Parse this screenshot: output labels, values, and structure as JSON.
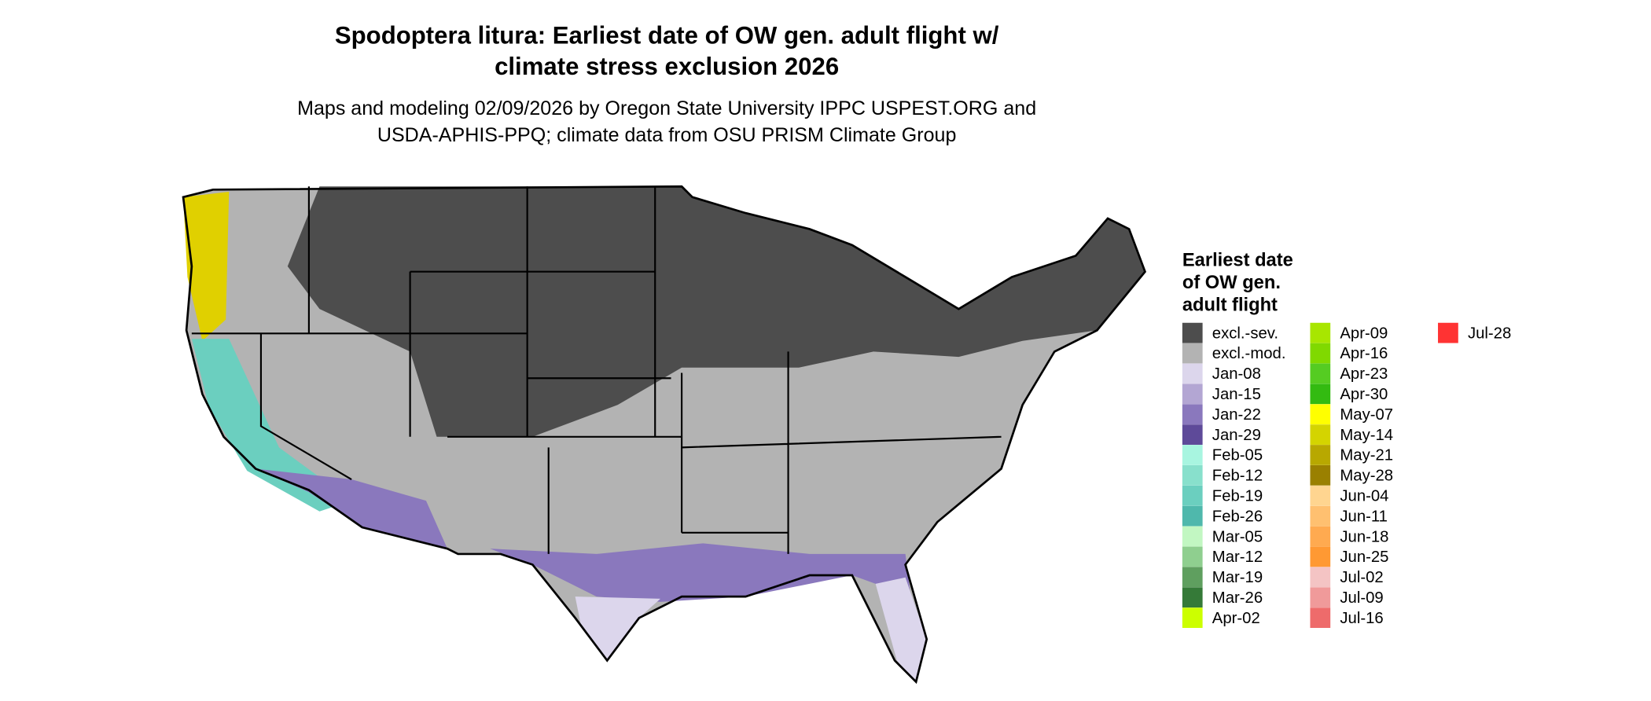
{
  "title": [
    "Spodoptera litura: Earliest date of OW gen. adult flight w/",
    "climate stress exclusion 2026"
  ],
  "subtitle": [
    "Maps and modeling 02/09/2026 by Oregon State University IPPC USPEST.ORG and",
    "USDA-APHIS-PPQ; climate data from OSU PRISM Climate Group"
  ],
  "legend": {
    "title": [
      "Earliest date",
      "of OW gen.",
      "adult flight"
    ],
    "items": [
      {
        "label": "excl.-sev.",
        "color": "#4d4d4d"
      },
      {
        "label": "excl.-mod.",
        "color": "#b3b3b3"
      },
      {
        "label": "Jan-08",
        "color": "#dcd6ec"
      },
      {
        "label": "Jan-15",
        "color": "#b3a6d3"
      },
      {
        "label": "Jan-22",
        "color": "#8a78bd"
      },
      {
        "label": "Jan-29",
        "color": "#5e4a99"
      },
      {
        "label": "Feb-05",
        "color": "#a8f5e0"
      },
      {
        "label": "Feb-12",
        "color": "#88e0cc"
      },
      {
        "label": "Feb-19",
        "color": "#6bcfbf"
      },
      {
        "label": "Feb-26",
        "color": "#4fb8ac"
      },
      {
        "label": "Mar-05",
        "color": "#c2f7c2"
      },
      {
        "label": "Mar-12",
        "color": "#8fcf8f"
      },
      {
        "label": "Mar-19",
        "color": "#5f9f5f"
      },
      {
        "label": "Mar-26",
        "color": "#357a38"
      },
      {
        "label": "Apr-02",
        "color": "#ccff00"
      },
      {
        "label": "Apr-09",
        "color": "#a8e600"
      },
      {
        "label": "Apr-16",
        "color": "#80d900"
      },
      {
        "label": "Apr-23",
        "color": "#55cc22"
      },
      {
        "label": "Apr-30",
        "color": "#33bb11"
      },
      {
        "label": "May-07",
        "color": "#ffff00"
      },
      {
        "label": "May-14",
        "color": "#d4d400"
      },
      {
        "label": "May-21",
        "color": "#b8a800"
      },
      {
        "label": "May-28",
        "color": "#9a8000"
      },
      {
        "label": "Jun-04",
        "color": "#ffd590"
      },
      {
        "label": "Jun-11",
        "color": "#ffc070"
      },
      {
        "label": "Jun-18",
        "color": "#ffaa50"
      },
      {
        "label": "Jun-25",
        "color": "#ff9933"
      },
      {
        "label": "Jul-02",
        "color": "#f4c4c4"
      },
      {
        "label": "Jul-09",
        "color": "#f09a9a"
      },
      {
        "label": "Jul-16",
        "color": "#ee6b6b"
      },
      {
        "label": "Jul-28",
        "color": "#ff3333"
      }
    ]
  }
}
